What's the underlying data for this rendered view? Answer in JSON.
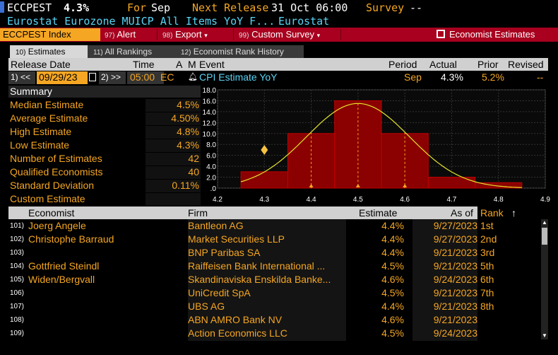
{
  "header": {
    "ticker": "ECCPEST",
    "value": "4.3%",
    "for_label": "For",
    "for_value": "Sep",
    "next_release_label": "Next Release",
    "next_release_value": "31 Oct 06:00",
    "survey_label": "Survey",
    "survey_value": "--",
    "subtitle": "Eurostat Eurozone MUICP All Items YoY F...",
    "source": "Eurostat"
  },
  "toolbar": {
    "index_label": "ECCPEST Index",
    "alert_num": "97)",
    "alert_label": "Alert",
    "export_num": "98)",
    "export_label": "Export",
    "survey_num": "99)",
    "survey_label": "Custom Survey",
    "economist_label": "Economist Estimates",
    "color_bar": "#a8001e",
    "color_accent": "#f5a623"
  },
  "tabs": [
    {
      "num": "10)",
      "label": "Estimates"
    },
    {
      "num": "11)",
      "label": "All Rankings"
    },
    {
      "num": "12)",
      "label": "Economist Rank History"
    }
  ],
  "release": {
    "headers": {
      "release_date": "Release Date",
      "time": "Time",
      "a": "A",
      "m": "M",
      "event": "Event",
      "period": "Period",
      "actual": "Actual",
      "prior": "Prior",
      "revised": "Revised"
    },
    "prev_btn": "1) <<",
    "date": "09/29/23",
    "next_btn": "2) >>",
    "time": "05:00",
    "tz": "EC",
    "event": "CPI Estimate YoY",
    "period": "Sep",
    "actual": "4.3%",
    "prior": "5.2%",
    "revised": "--"
  },
  "summary": {
    "title": "Summary",
    "rows": [
      {
        "label": "Median Estimate",
        "value": "4.5%"
      },
      {
        "label": "Average Estimate",
        "value": "4.50%"
      },
      {
        "label": "High Estimate",
        "value": "4.8%"
      },
      {
        "label": "Low Estimate",
        "value": "4.3%"
      },
      {
        "label": "Number of Estimates",
        "value": "42"
      },
      {
        "label": "Qualified Economists",
        "value": "40"
      },
      {
        "label": "Standard Deviation",
        "value": "0.11%"
      },
      {
        "label": "Custom Estimate",
        "value": ""
      }
    ]
  },
  "chart_data": {
    "type": "bar",
    "categories": [
      "4.3",
      "4.4",
      "4.5",
      "4.6",
      "4.7",
      "4.8"
    ],
    "values": [
      3,
      10,
      16,
      10,
      2,
      1
    ],
    "xlim": [
      4.2,
      4.9
    ],
    "ylim": [
      0,
      18
    ],
    "xticks": [
      "4.2",
      "4.3",
      "4.4",
      "4.5",
      "4.6",
      "4.7",
      "4.8",
      "4.9"
    ],
    "yticks": [
      ".0",
      "2.0",
      "4.0",
      "6.0",
      "8.0",
      "10.0",
      "12.0",
      "14.0",
      "16.0",
      "18.0"
    ],
    "markers": {
      "actual": 4.3,
      "low_mid": 4.4,
      "median": 4.5,
      "high_mid": 4.6
    },
    "curve_mean": 4.5,
    "curve_sd": 0.11,
    "curve_peak": 15.5,
    "grid": true,
    "bar_color": "#8b0000",
    "curve_color": "#e5e52a",
    "marker_color": "#f5a623"
  },
  "table": {
    "headers": {
      "economist": "Economist",
      "firm": "Firm",
      "estimate": "Estimate",
      "asof": "As of",
      "rank": "Rank",
      "sort_arrow": "↑"
    },
    "rows": [
      {
        "num": "101)",
        "economist": "Joerg Angele",
        "firm": "Bantleon AG",
        "estimate": "4.4%",
        "asof": "9/27/2023",
        "rank": "1st"
      },
      {
        "num": "102)",
        "economist": "Christophe Barraud",
        "firm": "Market Securities LLP",
        "estimate": "4.4%",
        "asof": "9/27/2023",
        "rank": "2nd"
      },
      {
        "num": "103)",
        "economist": "",
        "firm": "BNP Paribas SA",
        "estimate": "4.4%",
        "asof": "9/21/2023",
        "rank": "3rd"
      },
      {
        "num": "104)",
        "economist": "Gottfried Steindl",
        "firm": "Raiffeisen Bank International ...",
        "estimate": "4.5%",
        "asof": "9/21/2023",
        "rank": "5th"
      },
      {
        "num": "105)",
        "economist": "Widen/Bergvall",
        "firm": "Skandinaviska Enskilda Banke...",
        "estimate": "4.6%",
        "asof": "9/24/2023",
        "rank": "6th"
      },
      {
        "num": "106)",
        "economist": "",
        "firm": "UniCredit SpA",
        "estimate": "4.5%",
        "asof": "9/21/2023",
        "rank": "7th"
      },
      {
        "num": "107)",
        "economist": "",
        "firm": "UBS AG",
        "estimate": "4.4%",
        "asof": "9/21/2023",
        "rank": "8th"
      },
      {
        "num": "108)",
        "economist": "",
        "firm": "ABN AMRO Bank NV",
        "estimate": "4.6%",
        "asof": "9/21/2023",
        "rank": ""
      },
      {
        "num": "109)",
        "economist": "",
        "firm": "Action Economics LLC",
        "estimate": "4.5%",
        "asof": "9/24/2023",
        "rank": ""
      }
    ]
  }
}
